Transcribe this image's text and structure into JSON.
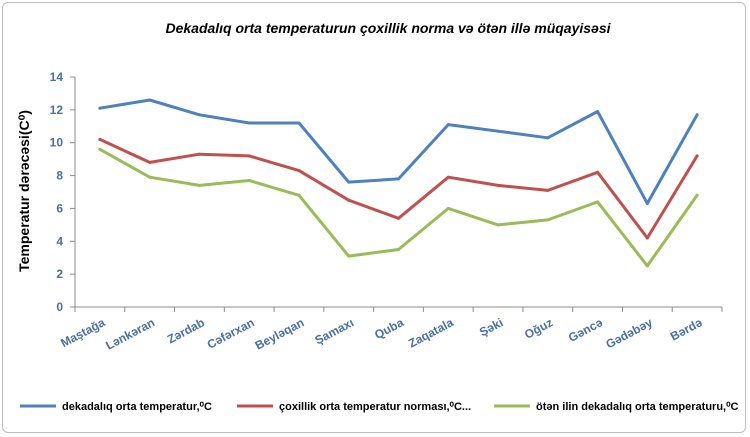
{
  "chart_data": {
    "type": "line",
    "title": "Dekadalıq orta temperaturun çoxillik  norma və ötən illə müqayisəsi",
    "ylabel": "Temperatur dərəcəsi(C⁰)",
    "xlabel": "",
    "ylim": [
      0,
      14
    ],
    "yticks": [
      0,
      2,
      4,
      6,
      8,
      10,
      12,
      14
    ],
    "grid": false,
    "legend_position": "bottom",
    "categories": [
      "Maştağa",
      "Lənkəran",
      "Zərdab",
      "Cəfərxan",
      "Beyləqan",
      "Şamaxı",
      "Quba",
      "Zaqatala",
      "Şəki",
      "Oğuz",
      "Gəncə",
      "Gədəbəy",
      "Bərdə"
    ],
    "series": [
      {
        "name": "dekadalıq orta temperatur,⁰C",
        "color": "#4f81bd",
        "values": [
          12.1,
          12.6,
          11.7,
          11.2,
          11.2,
          7.6,
          7.8,
          11.1,
          10.7,
          10.3,
          11.9,
          6.3,
          11.7
        ]
      },
      {
        "name": "çoxillik orta temperatur norması,⁰C...",
        "color": "#c0504d",
        "values": [
          10.2,
          8.8,
          9.3,
          9.2,
          8.3,
          6.5,
          5.4,
          7.9,
          7.4,
          7.1,
          8.2,
          4.2,
          9.2
        ]
      },
      {
        "name": "ötən ilin dekadalıq orta temperaturu,⁰C",
        "color": "#9bbb59",
        "values": [
          9.6,
          7.9,
          7.4,
          7.7,
          6.8,
          3.1,
          3.5,
          6.0,
          5.0,
          5.3,
          6.4,
          2.5,
          6.8
        ]
      }
    ]
  }
}
